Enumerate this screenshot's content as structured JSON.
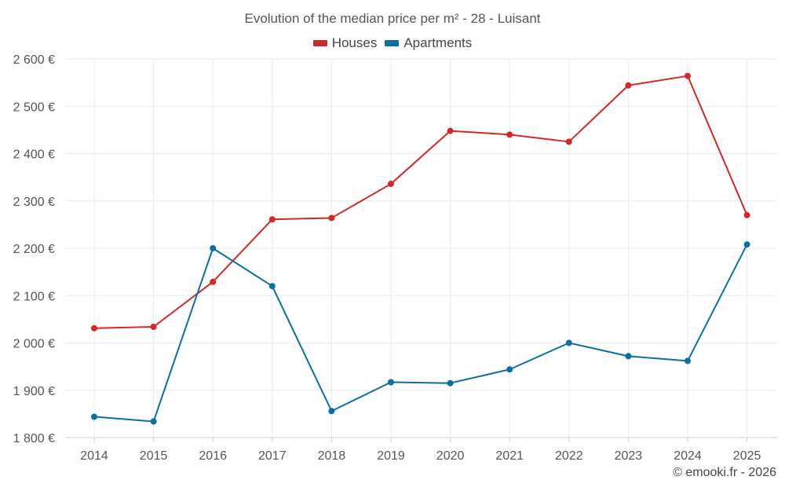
{
  "colors": {
    "houses": "#d62728",
    "apartments": "#0a6fa3"
  },
  "chart_data": {
    "type": "line",
    "title": "Evolution of the median price per m² - 28 - Luisant",
    "x": [
      "2014",
      "2015",
      "2016",
      "2017",
      "2018",
      "2019",
      "2020",
      "2021",
      "2022",
      "2023",
      "2024",
      "2025"
    ],
    "series": [
      {
        "name": "Houses",
        "color": "#d62728",
        "values": [
          2031,
          2034,
          2129,
          2261,
          2264,
          2336,
          2448,
          2440,
          2425,
          2544,
          2564,
          2270
        ]
      },
      {
        "name": "Apartments",
        "color": "#0a6fa3",
        "values": [
          1844,
          1834,
          2200,
          2120,
          1856,
          1917,
          1915,
          1944,
          2000,
          1972,
          1962,
          2208
        ]
      }
    ],
    "ylim": [
      1800,
      2600
    ],
    "yticks": [
      "1 800 €",
      "1 900 €",
      "2 000 €",
      "2 100 €",
      "2 200 €",
      "2 300 €",
      "2 400 €",
      "2 500 €",
      "2 600 €"
    ],
    "ytick_values": [
      1800,
      1900,
      2000,
      2100,
      2200,
      2300,
      2400,
      2500,
      2600
    ],
    "grid": true,
    "legend_position": "top-center"
  },
  "credit": "© emooki.fr - 2026"
}
